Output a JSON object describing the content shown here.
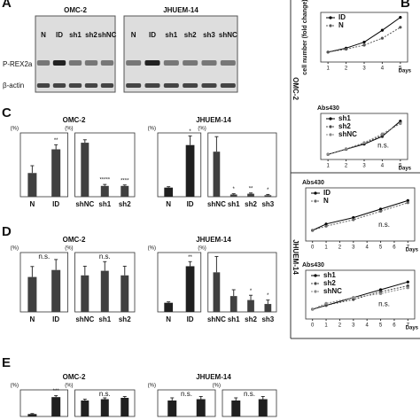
{
  "panel_labels": [
    "A",
    "B",
    "C",
    "D",
    "E"
  ],
  "blot": {
    "rows": [
      "P-REX2a",
      "β-actin"
    ],
    "groups": [
      {
        "title": "OMC-2",
        "lanes": [
          "N",
          "ID",
          "sh1",
          "sh2",
          "shNC"
        ]
      },
      {
        "title": "JHUEM-14",
        "lanes": [
          "N",
          "ID",
          "sh1",
          "sh2",
          "sh3",
          "shNC"
        ]
      }
    ]
  },
  "bar_panels": [
    {
      "groups": [
        {
          "title": "OMC-2",
          "charts": [
            {
              "unit": "(%)",
              "categories": [
                "N",
                "ID"
              ],
              "values": [
                1.3,
                2.6
              ],
              "errors": [
                0.4,
                0.25
              ],
              "significance": [
                null,
                "**"
              ],
              "ylim": [
                0,
                3.5
              ],
              "color": "#404040"
            },
            {
              "unit": "(%)",
              "categories": [
                "shNC",
                "sh1",
                "sh2"
              ],
              "values": [
                5.5,
                1.1,
                1.1
              ],
              "errors": [
                0.3,
                0.15,
                0.1
              ],
              "significance": [
                null,
                "*****",
                "****"
              ],
              "ylim": [
                0,
                6.5
              ],
              "color": "#404040"
            }
          ]
        },
        {
          "title": "JHUEM-14",
          "charts": [
            {
              "unit": "(%)",
              "categories": [
                "N",
                "ID"
              ],
              "values": [
                0.3,
                1.7
              ],
              "errors": [
                0.03,
                0.3
              ],
              "significance": [
                null,
                "*"
              ],
              "ylim": [
                0,
                2.1
              ],
              "color": "#202020"
            },
            {
              "unit": "(%)",
              "categories": [
                "shNC",
                "sh1",
                "sh2",
                "sh3"
              ],
              "values": [
                0.6,
                0.03,
                0.04,
                0.02
              ],
              "errors": [
                0.2,
                0.01,
                0.01,
                0.01
              ],
              "significance": [
                null,
                "*",
                "**",
                "*"
              ],
              "ylim": [
                0,
                0.85
              ],
              "color": "#404040"
            }
          ]
        }
      ]
    },
    {
      "groups": [
        {
          "title": "OMC-2",
          "charts": [
            {
              "unit": "(%)",
              "categories": [
                "N",
                "ID"
              ],
              "values": [
                1.0,
                1.2
              ],
              "errors": [
                0.3,
                0.3
              ],
              "note": "n.s.",
              "ylim": [
                0,
                1.7
              ],
              "color": "#404040"
            },
            {
              "unit": "(%)",
              "categories": [
                "shNC",
                "sh1",
                "sh2"
              ],
              "values": [
                1.6,
                1.8,
                1.6
              ],
              "errors": [
                0.4,
                0.4,
                0.4
              ],
              "note": "n.s.",
              "ylim": [
                0,
                2.6
              ],
              "color": "#404040"
            }
          ]
        },
        {
          "title": "JHUEM-14",
          "charts": [
            {
              "unit": "(%)",
              "categories": [
                "N",
                "ID"
              ],
              "values": [
                0.1,
                0.5
              ],
              "errors": [
                0.01,
                0.05
              ],
              "significance": [
                null,
                "**"
              ],
              "ylim": [
                0,
                0.65
              ],
              "color": "#202020"
            },
            {
              "unit": "(%)",
              "categories": [
                "shNC",
                "sh1",
                "sh2",
                "sh3"
              ],
              "values": [
                0.5,
                0.2,
                0.15,
                0.1
              ],
              "errors": [
                0.2,
                0.08,
                0.06,
                0.05
              ],
              "significance": [
                null,
                null,
                "*",
                "*"
              ],
              "ylim": [
                0,
                0.75
              ],
              "color": "#404040"
            }
          ]
        }
      ]
    },
    {
      "groups": [
        {
          "title": "OMC-2",
          "charts": [
            {
              "unit": "(%)",
              "values": [
                1,
                8
              ],
              "errors": [
                0.2,
                0.6
              ],
              "significance": [
                null,
                "***"
              ],
              "ylim": [
                0,
                11
              ],
              "color": "#202020"
            },
            {
              "unit": "(%)",
              "values": [
                6,
                6.5,
                7
              ],
              "errors": [
                0.5,
                0.5,
                0.5
              ],
              "note": "n.s.",
              "ylim": [
                0,
                10
              ],
              "color": "#202020"
            }
          ]
        },
        {
          "title": "JHUEM-14",
          "charts": [
            {
              "unit": "(%)",
              "values": [
                6,
                6.5
              ],
              "errors": [
                1,
                1
              ],
              "note": "n.s.",
              "ylim": [
                0,
                10
              ],
              "color": "#202020"
            },
            {
              "unit": "(%)",
              "values": [
                6,
                6.5
              ],
              "errors": [
                1,
                1
              ],
              "note": "n.s.",
              "ylim": [
                0,
                10
              ],
              "color": "#202020"
            }
          ]
        }
      ]
    }
  ],
  "side_labels": [
    "OMC-2",
    "JHUEM-14"
  ],
  "line_charts": [
    {
      "y_label": "cell number (fold change)",
      "x_label": "Days",
      "x": [
        1,
        2,
        3,
        4,
        5
      ],
      "xlim": [
        0.6,
        5.4
      ],
      "xticks": [
        1,
        2,
        3,
        4,
        5
      ],
      "ylim": [
        0,
        5
      ],
      "series": [
        {
          "name": "ID",
          "color": "#000000",
          "values": [
            1,
            1.4,
            2.0,
            3.2,
            4.5
          ]
        },
        {
          "name": "N",
          "color": "#555555",
          "values": [
            1,
            1.3,
            1.7,
            2.4,
            3.5
          ]
        }
      ]
    },
    {
      "y_label": "Abs430",
      "x_label": "Days",
      "note": "n.s.",
      "x": [
        1,
        2,
        3,
        4,
        5
      ],
      "xlim": [
        0.6,
        5.4
      ],
      "xticks": [
        1,
        2,
        3,
        4,
        5
      ],
      "ylim": [
        0,
        0.9
      ],
      "series": [
        {
          "name": "sh1",
          "color": "#000000",
          "values": [
            0.1,
            0.2,
            0.3,
            0.45,
            0.75
          ]
        },
        {
          "name": "sh2",
          "color": "#444444",
          "values": [
            0.1,
            0.2,
            0.32,
            0.47,
            0.72
          ]
        },
        {
          "name": "shNC",
          "color": "#888888",
          "values": [
            0.1,
            0.21,
            0.33,
            0.5,
            0.7
          ]
        }
      ]
    },
    {
      "y_label": "Abs430",
      "x_label": "Days",
      "note": "n.s.",
      "x": [
        0,
        1,
        3,
        5,
        7
      ],
      "xlim": [
        -0.5,
        7.5
      ],
      "xticks": [
        0,
        1,
        2,
        3,
        4,
        5,
        6,
        7
      ],
      "ylim": [
        0.25,
        0.5
      ],
      "series": [
        {
          "name": "ID",
          "color": "#000000",
          "values": [
            0.3,
            0.33,
            0.36,
            0.4,
            0.44
          ]
        },
        {
          "name": "N",
          "color": "#666666",
          "values": [
            0.3,
            0.32,
            0.35,
            0.39,
            0.43
          ]
        }
      ]
    },
    {
      "y_label": "Abs430",
      "x_label": "Days",
      "note": "n.s.",
      "x": [
        0,
        1,
        3,
        5,
        7
      ],
      "xlim": [
        -0.5,
        7.5
      ],
      "xticks": [
        0,
        1,
        2,
        3,
        4,
        5,
        6,
        7
      ],
      "ylim": [
        0.25,
        0.5
      ],
      "series": [
        {
          "name": "sh1",
          "color": "#000000",
          "values": [
            0.3,
            0.32,
            0.36,
            0.4,
            0.44
          ]
        },
        {
          "name": "sh2",
          "color": "#444444",
          "values": [
            0.3,
            0.32,
            0.35,
            0.39,
            0.42
          ]
        },
        {
          "name": "shNC",
          "color": "#888888",
          "values": [
            0.3,
            0.33,
            0.36,
            0.38,
            0.41
          ]
        }
      ]
    }
  ]
}
